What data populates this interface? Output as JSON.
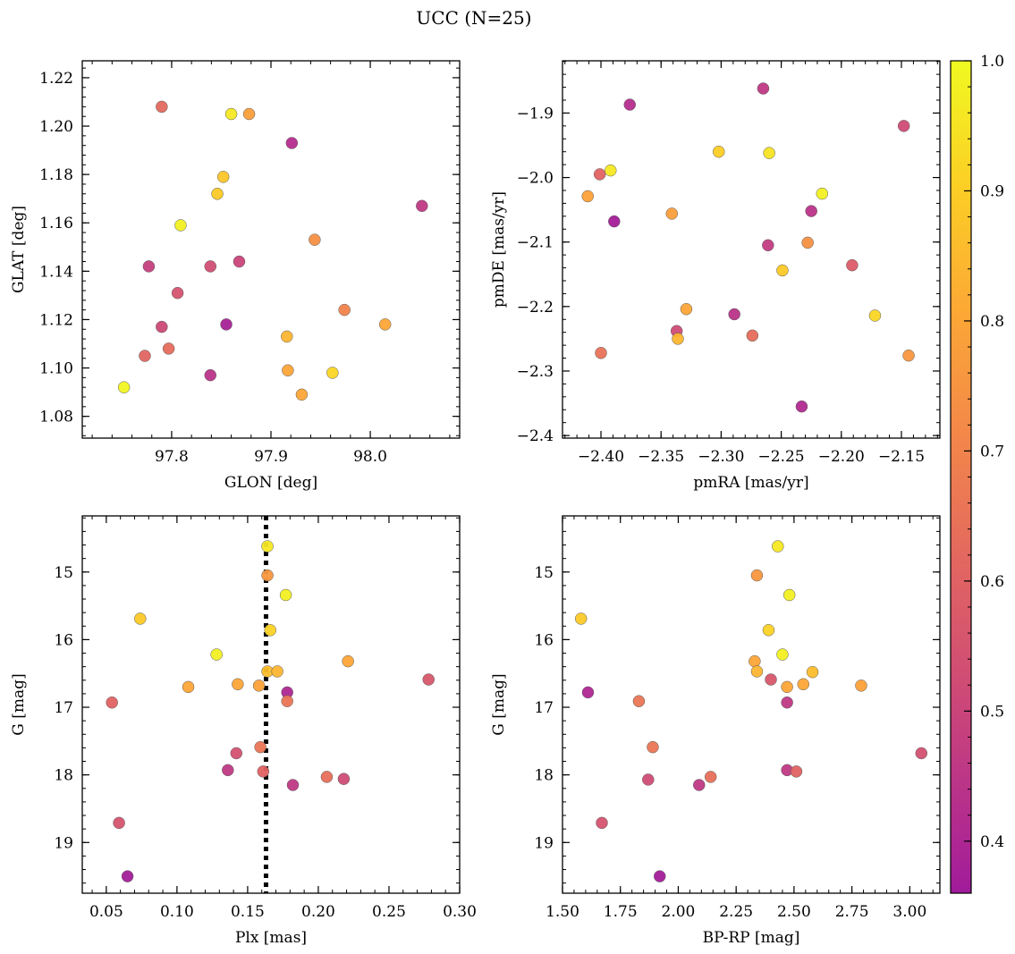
{
  "figure": {
    "title": "UCC (N=25)"
  },
  "colorbar": {
    "vmin": 0.36,
    "vmax": 1.0,
    "ticks": [
      0.4,
      0.5,
      0.6,
      0.7,
      0.8,
      0.9,
      1.0
    ],
    "tick_labels": [
      "0.4",
      "0.5",
      "0.6",
      "0.7",
      "0.8",
      "0.9",
      "1.0"
    ],
    "colormap": "plasma"
  },
  "chart_data": [
    {
      "type": "scatter",
      "id": "glon-glat",
      "xlabel": "GLON [deg]",
      "ylabel": "GLAT [deg]",
      "xlim": [
        97.71,
        98.09
      ],
      "ylim": [
        1.071,
        1.227
      ],
      "invert_y": false,
      "xticks": [
        97.8,
        97.9,
        98.0
      ],
      "xtick_labels": [
        "97.8",
        "97.9",
        "98.0"
      ],
      "yticks": [
        1.08,
        1.1,
        1.12,
        1.14,
        1.16,
        1.18,
        1.2,
        1.22
      ],
      "ytick_labels": [
        "1.08",
        "1.10",
        "1.12",
        "1.14",
        "1.16",
        "1.18",
        "1.20",
        "1.22"
      ],
      "points": [
        {
          "x": 97.79,
          "y": 1.208,
          "c": 0.62
        },
        {
          "x": 97.86,
          "y": 1.205,
          "c": 0.96
        },
        {
          "x": 97.878,
          "y": 1.205,
          "c": 0.78
        },
        {
          "x": 97.921,
          "y": 1.193,
          "c": 0.42
        },
        {
          "x": 97.852,
          "y": 1.179,
          "c": 0.88
        },
        {
          "x": 97.846,
          "y": 1.172,
          "c": 0.89
        },
        {
          "x": 98.052,
          "y": 1.167,
          "c": 0.46
        },
        {
          "x": 97.809,
          "y": 1.159,
          "c": 0.98
        },
        {
          "x": 97.944,
          "y": 1.153,
          "c": 0.74
        },
        {
          "x": 97.868,
          "y": 1.144,
          "c": 0.5
        },
        {
          "x": 97.777,
          "y": 1.142,
          "c": 0.48
        },
        {
          "x": 97.839,
          "y": 1.142,
          "c": 0.53
        },
        {
          "x": 97.806,
          "y": 1.131,
          "c": 0.55
        },
        {
          "x": 97.974,
          "y": 1.124,
          "c": 0.7
        },
        {
          "x": 98.015,
          "y": 1.118,
          "c": 0.8
        },
        {
          "x": 97.79,
          "y": 1.117,
          "c": 0.51
        },
        {
          "x": 97.855,
          "y": 1.118,
          "c": 0.38
        },
        {
          "x": 97.916,
          "y": 1.113,
          "c": 0.84
        },
        {
          "x": 97.797,
          "y": 1.108,
          "c": 0.63
        },
        {
          "x": 97.773,
          "y": 1.105,
          "c": 0.61
        },
        {
          "x": 97.917,
          "y": 1.099,
          "c": 0.8
        },
        {
          "x": 97.962,
          "y": 1.098,
          "c": 0.92
        },
        {
          "x": 97.839,
          "y": 1.097,
          "c": 0.44
        },
        {
          "x": 97.931,
          "y": 1.089,
          "c": 0.8
        },
        {
          "x": 97.752,
          "y": 1.092,
          "c": 0.99
        }
      ]
    },
    {
      "type": "scatter",
      "id": "pmra-pmde",
      "xlabel": "pmRA [mas/yr]",
      "ylabel": "pmDE [mas/yr]",
      "xlim": [
        -2.432,
        -2.118
      ],
      "ylim": [
        -2.404,
        -1.819
      ],
      "invert_y": false,
      "xticks": [
        -2.4,
        -2.35,
        -2.3,
        -2.25,
        -2.2,
        -2.15
      ],
      "xtick_labels": [
        "−2.40",
        "−2.35",
        "−2.30",
        "−2.25",
        "−2.20",
        "−2.15"
      ],
      "yticks": [
        -2.4,
        -2.3,
        -2.2,
        -2.1,
        -2.0,
        -1.9
      ],
      "ytick_labels": [
        "−2.4",
        "−2.3",
        "−2.2",
        "−2.1",
        "−2.0",
        "−1.9"
      ],
      "points": [
        {
          "x": -2.265,
          "y": -1.862,
          "c": 0.46
        },
        {
          "x": -2.376,
          "y": -1.887,
          "c": 0.42
        },
        {
          "x": -2.148,
          "y": -1.92,
          "c": 0.52
        },
        {
          "x": -2.302,
          "y": -1.96,
          "c": 0.9
        },
        {
          "x": -2.26,
          "y": -1.962,
          "c": 0.95
        },
        {
          "x": -2.392,
          "y": -1.989,
          "c": 0.96
        },
        {
          "x": -2.401,
          "y": -1.995,
          "c": 0.6
        },
        {
          "x": -2.216,
          "y": -2.025,
          "c": 0.98
        },
        {
          "x": -2.411,
          "y": -2.029,
          "c": 0.79
        },
        {
          "x": -2.225,
          "y": -2.052,
          "c": 0.44
        },
        {
          "x": -2.341,
          "y": -2.056,
          "c": 0.78
        },
        {
          "x": -2.389,
          "y": -2.068,
          "c": 0.37
        },
        {
          "x": -2.261,
          "y": -2.105,
          "c": 0.47
        },
        {
          "x": -2.228,
          "y": -2.101,
          "c": 0.74
        },
        {
          "x": -2.249,
          "y": -2.144,
          "c": 0.89
        },
        {
          "x": -2.191,
          "y": -2.136,
          "c": 0.58
        },
        {
          "x": -2.329,
          "y": -2.204,
          "c": 0.8
        },
        {
          "x": -2.289,
          "y": -2.212,
          "c": 0.44
        },
        {
          "x": -2.172,
          "y": -2.214,
          "c": 0.92
        },
        {
          "x": -2.337,
          "y": -2.238,
          "c": 0.52
        },
        {
          "x": -2.336,
          "y": -2.25,
          "c": 0.84
        },
        {
          "x": -2.274,
          "y": -2.245,
          "c": 0.63
        },
        {
          "x": -2.4,
          "y": -2.272,
          "c": 0.65
        },
        {
          "x": -2.144,
          "y": -2.276,
          "c": 0.76
        },
        {
          "x": -2.233,
          "y": -2.355,
          "c": 0.41
        }
      ]
    },
    {
      "type": "scatter",
      "id": "plx-g",
      "xlabel": "Plx [mas]",
      "ylabel": "G [mag]",
      "xlim": [
        0.033,
        0.3
      ],
      "ylim": [
        14.17,
        19.75
      ],
      "invert_y": true,
      "vline": 0.163,
      "xticks": [
        0.05,
        0.1,
        0.15,
        0.2,
        0.25,
        0.3
      ],
      "xtick_labels": [
        "0.05",
        "0.10",
        "0.15",
        "0.20",
        "0.25",
        "0.30"
      ],
      "yticks": [
        15,
        16,
        17,
        18,
        19
      ],
      "ytick_labels": [
        "15",
        "16",
        "17",
        "18",
        "19"
      ],
      "points": [
        {
          "x": 0.164,
          "y": 14.62,
          "c": 0.96
        },
        {
          "x": 0.164,
          "y": 15.05,
          "c": 0.76
        },
        {
          "x": 0.177,
          "y": 15.34,
          "c": 0.98
        },
        {
          "x": 0.074,
          "y": 15.69,
          "c": 0.89
        },
        {
          "x": 0.166,
          "y": 15.86,
          "c": 0.91
        },
        {
          "x": 0.128,
          "y": 16.22,
          "c": 0.98
        },
        {
          "x": 0.221,
          "y": 16.32,
          "c": 0.8
        },
        {
          "x": 0.164,
          "y": 16.47,
          "c": 0.86
        },
        {
          "x": 0.171,
          "y": 16.47,
          "c": 0.84
        },
        {
          "x": 0.278,
          "y": 16.59,
          "c": 0.56
        },
        {
          "x": 0.143,
          "y": 16.66,
          "c": 0.8
        },
        {
          "x": 0.158,
          "y": 16.68,
          "c": 0.79
        },
        {
          "x": 0.108,
          "y": 16.7,
          "c": 0.8
        },
        {
          "x": 0.178,
          "y": 16.78,
          "c": 0.4
        },
        {
          "x": 0.178,
          "y": 16.91,
          "c": 0.66
        },
        {
          "x": 0.054,
          "y": 16.93,
          "c": 0.6
        },
        {
          "x": 0.159,
          "y": 17.59,
          "c": 0.66
        },
        {
          "x": 0.142,
          "y": 17.68,
          "c": 0.54
        },
        {
          "x": 0.136,
          "y": 17.93,
          "c": 0.46
        },
        {
          "x": 0.161,
          "y": 17.95,
          "c": 0.6
        },
        {
          "x": 0.206,
          "y": 18.03,
          "c": 0.64
        },
        {
          "x": 0.218,
          "y": 18.06,
          "c": 0.52
        },
        {
          "x": 0.182,
          "y": 18.15,
          "c": 0.46
        },
        {
          "x": 0.059,
          "y": 18.71,
          "c": 0.55
        },
        {
          "x": 0.065,
          "y": 19.5,
          "c": 0.37
        }
      ]
    },
    {
      "type": "scatter",
      "id": "bprp-g",
      "xlabel": "BP-RP [mag]",
      "ylabel": "G [mag]",
      "xlim": [
        1.5,
        3.13
      ],
      "ylim": [
        14.17,
        19.75
      ],
      "invert_y": true,
      "xticks": [
        1.5,
        1.75,
        2.0,
        2.25,
        2.5,
        2.75,
        3.0
      ],
      "xtick_labels": [
        "1.50",
        "1.75",
        "2.00",
        "2.25",
        "2.50",
        "2.75",
        "3.00"
      ],
      "yticks": [
        15,
        16,
        17,
        18,
        19
      ],
      "ytick_labels": [
        "15",
        "16",
        "17",
        "18",
        "19"
      ],
      "points": [
        {
          "x": 2.43,
          "y": 14.62,
          "c": 0.96
        },
        {
          "x": 2.34,
          "y": 15.05,
          "c": 0.76
        },
        {
          "x": 2.48,
          "y": 15.34,
          "c": 0.98
        },
        {
          "x": 1.58,
          "y": 15.69,
          "c": 0.89
        },
        {
          "x": 2.39,
          "y": 15.86,
          "c": 0.91
        },
        {
          "x": 2.45,
          "y": 16.22,
          "c": 0.98
        },
        {
          "x": 2.33,
          "y": 16.32,
          "c": 0.8
        },
        {
          "x": 2.34,
          "y": 16.47,
          "c": 0.84
        },
        {
          "x": 2.58,
          "y": 16.48,
          "c": 0.86
        },
        {
          "x": 2.4,
          "y": 16.59,
          "c": 0.56
        },
        {
          "x": 2.54,
          "y": 16.66,
          "c": 0.8
        },
        {
          "x": 2.79,
          "y": 16.68,
          "c": 0.79
        },
        {
          "x": 2.47,
          "y": 16.7,
          "c": 0.8
        },
        {
          "x": 1.61,
          "y": 16.78,
          "c": 0.4
        },
        {
          "x": 1.83,
          "y": 16.91,
          "c": 0.66
        },
        {
          "x": 2.47,
          "y": 16.93,
          "c": 0.46
        },
        {
          "x": 1.89,
          "y": 17.59,
          "c": 0.66
        },
        {
          "x": 3.05,
          "y": 17.68,
          "c": 0.54
        },
        {
          "x": 2.47,
          "y": 17.93,
          "c": 0.46
        },
        {
          "x": 2.51,
          "y": 17.95,
          "c": 0.6
        },
        {
          "x": 2.14,
          "y": 18.03,
          "c": 0.64
        },
        {
          "x": 1.87,
          "y": 18.07,
          "c": 0.52
        },
        {
          "x": 2.09,
          "y": 18.15,
          "c": 0.46
        },
        {
          "x": 1.67,
          "y": 18.71,
          "c": 0.55
        },
        {
          "x": 1.92,
          "y": 19.5,
          "c": 0.37
        }
      ]
    }
  ]
}
